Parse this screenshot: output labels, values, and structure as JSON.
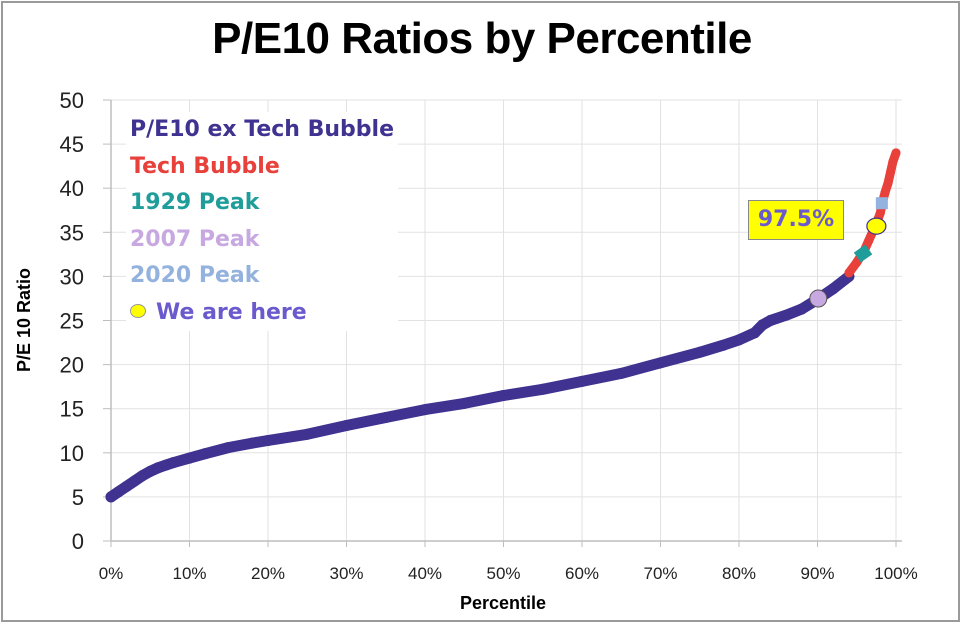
{
  "chart_data": {
    "type": "scatter",
    "title": "P/E10 Ratios by Percentile",
    "xlabel": "Percentile",
    "ylabel": "P/E 10 Ratio",
    "xlim": [
      0,
      100
    ],
    "ylim": [
      0,
      50
    ],
    "x_ticks": [
      "0%",
      "10%",
      "20%",
      "30%",
      "40%",
      "50%",
      "60%",
      "70%",
      "80%",
      "90%",
      "100%"
    ],
    "y_ticks": [
      "0",
      "5",
      "10",
      "15",
      "20",
      "25",
      "30",
      "35",
      "40",
      "45",
      "50"
    ],
    "grid": true,
    "legend_position": "top-left",
    "series": [
      {
        "name": "P/E10 ex Tech Bubble",
        "color": "#3f3290",
        "x": [
          0,
          1,
          2,
          3,
          4,
          5,
          6,
          7,
          8,
          10,
          12,
          15,
          18,
          20,
          25,
          30,
          35,
          40,
          45,
          50,
          55,
          60,
          65,
          70,
          75,
          78,
          80,
          82,
          83,
          84,
          86,
          88,
          90,
          92,
          94
        ],
        "y": [
          5.0,
          5.6,
          6.2,
          6.8,
          7.4,
          7.9,
          8.3,
          8.6,
          8.9,
          9.4,
          9.9,
          10.6,
          11.1,
          11.4,
          12.1,
          13.1,
          14.0,
          14.9,
          15.6,
          16.5,
          17.2,
          18.1,
          19.0,
          20.2,
          21.4,
          22.2,
          22.8,
          23.6,
          24.5,
          25.0,
          25.6,
          26.3,
          27.4,
          28.6,
          30.0
        ]
      },
      {
        "name": "Tech Bubble",
        "color": "#e8403a",
        "x": [
          94,
          95,
          96,
          96.5,
          97,
          97.5,
          98,
          98.3,
          98.6,
          99,
          99.3,
          99.6,
          100
        ],
        "y": [
          30.4,
          31.6,
          33.0,
          34.0,
          35.0,
          36.0,
          37.2,
          38.5,
          39.5,
          40.6,
          41.8,
          43.0,
          44.0
        ]
      },
      {
        "name": "1929 Peak",
        "color": "#1f9d9a",
        "marker": "diamond",
        "x": [
          95.8
        ],
        "y": [
          32.6
        ]
      },
      {
        "name": "2007 Peak",
        "color": "#c8a8e0",
        "marker": "circle",
        "x": [
          90.1
        ],
        "y": [
          27.5
        ]
      },
      {
        "name": "2020 Peak",
        "color": "#94b2de",
        "marker": "square",
        "x": [
          98.2
        ],
        "y": [
          38.3
        ]
      },
      {
        "name": "We are here",
        "color": "#ffff00",
        "marker": "circle",
        "x": [
          97.5
        ],
        "y": [
          35.7
        ]
      }
    ],
    "annotations": [
      {
        "text": "97.5%",
        "x": 97.5,
        "y": 35.7,
        "background": "#ffff00",
        "color": "#6a5acd"
      }
    ]
  },
  "legend": [
    {
      "label": "P/E10 ex Tech Bubble",
      "color": "#3f3290"
    },
    {
      "label": "Tech Bubble",
      "color": "#e8403a"
    },
    {
      "label": "1929 Peak",
      "color": "#1f9d9a"
    },
    {
      "label": "2007 Peak",
      "color": "#c8a8e0"
    },
    {
      "label": "2020 Peak",
      "color": "#94b2de"
    },
    {
      "label": "We are here",
      "color": "#6a5acd"
    }
  ]
}
